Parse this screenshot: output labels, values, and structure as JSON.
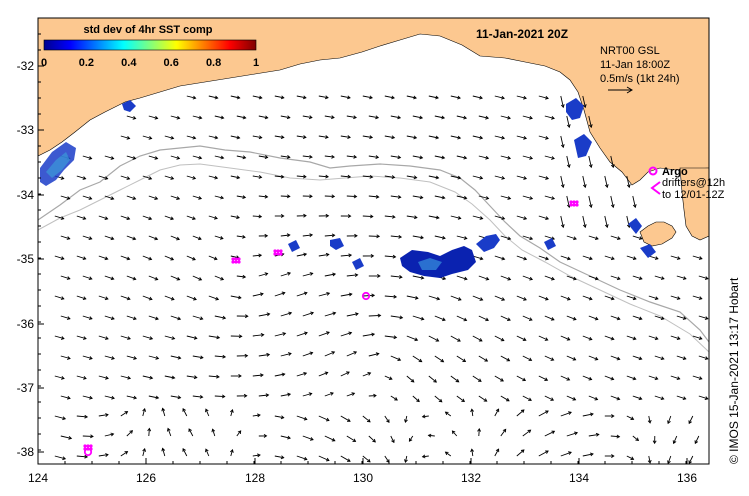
{
  "map": {
    "title": "11-Jan-2021 20Z",
    "legend": {
      "title": "std dev of 4hr SST comp",
      "ticks": [
        "0",
        "0.2",
        "0.4",
        "0.6",
        "0.8",
        "1"
      ]
    },
    "info": {
      "line1": "NRT00 GSL",
      "line2": "11-Jan 18:00Z",
      "line3": "0.5m/s (1kt 24h)"
    },
    "argo_label": "Argo",
    "drifters_label1": "drifters@12h",
    "drifters_label2": "to 12/01-12Z",
    "credit": "© IMOS 15-Jan-2021 13:17 Hobart",
    "x_ticks": [
      "124",
      "126",
      "128",
      "130",
      "132",
      "134",
      "136"
    ],
    "y_ticks": [
      "-32",
      "-33",
      "-34",
      "-35",
      "-36",
      "-37",
      "-38"
    ],
    "colors": {
      "land": "#fcc890",
      "bathy": "#a8a8a8",
      "argo": "#ff00ff",
      "sst_low": "#0010a0"
    }
  }
}
